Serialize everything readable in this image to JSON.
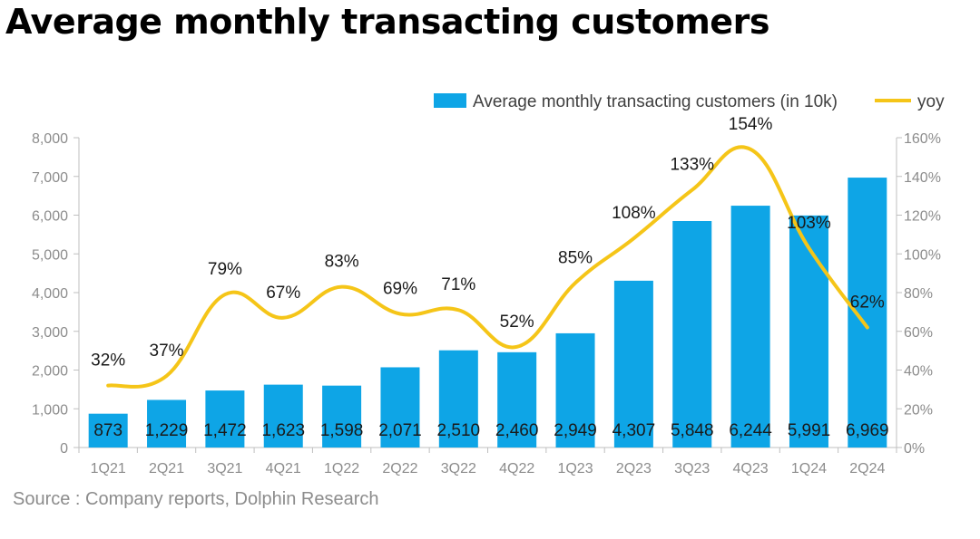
{
  "title": "Average monthly transacting customers",
  "source": "Source : Company reports, Dolphin Research",
  "colors": {
    "bar": "#0ea5e6",
    "line": "#f5c518",
    "axis_text": "#8c8c8c"
  },
  "chart_data": {
    "type": "bar",
    "categories": [
      "1Q21",
      "2Q21",
      "3Q21",
      "4Q21",
      "1Q22",
      "2Q22",
      "3Q22",
      "4Q22",
      "1Q23",
      "2Q23",
      "3Q23",
      "4Q23",
      "1Q24",
      "2Q24"
    ],
    "series": [
      {
        "name": "Average monthly transacting customers (in 10k)",
        "type": "bar",
        "axis": "left",
        "values": [
          873,
          1229,
          1472,
          1623,
          1598,
          2071,
          2510,
          2460,
          2949,
          4307,
          5848,
          6244,
          5991,
          6969
        ],
        "labels": [
          "873",
          "1,229",
          "1,472",
          "1,623",
          "1,598",
          "2,071",
          "2,510",
          "2,460",
          "2,949",
          "4,307",
          "5,848",
          "6,244",
          "5,991",
          "6,969"
        ]
      },
      {
        "name": "yoy",
        "type": "line",
        "axis": "right",
        "values": [
          32,
          37,
          79,
          67,
          83,
          69,
          71,
          52,
          85,
          108,
          133,
          154,
          103,
          62
        ],
        "labels": [
          "32%",
          "37%",
          "79%",
          "67%",
          "83%",
          "69%",
          "71%",
          "52%",
          "85%",
          "108%",
          "133%",
          "154%",
          "103%",
          "62%"
        ]
      }
    ],
    "y_left": {
      "ylim": [
        0,
        8000
      ],
      "ticks": [
        "0",
        "1,000",
        "2,000",
        "3,000",
        "4,000",
        "5,000",
        "6,000",
        "7,000",
        "8,000"
      ]
    },
    "y_right": {
      "ylim": [
        0,
        160
      ],
      "ticks": [
        "0%",
        "20%",
        "40%",
        "60%",
        "80%",
        "100%",
        "120%",
        "140%",
        "160%"
      ]
    },
    "grid": false,
    "legend_position": "top-right"
  }
}
